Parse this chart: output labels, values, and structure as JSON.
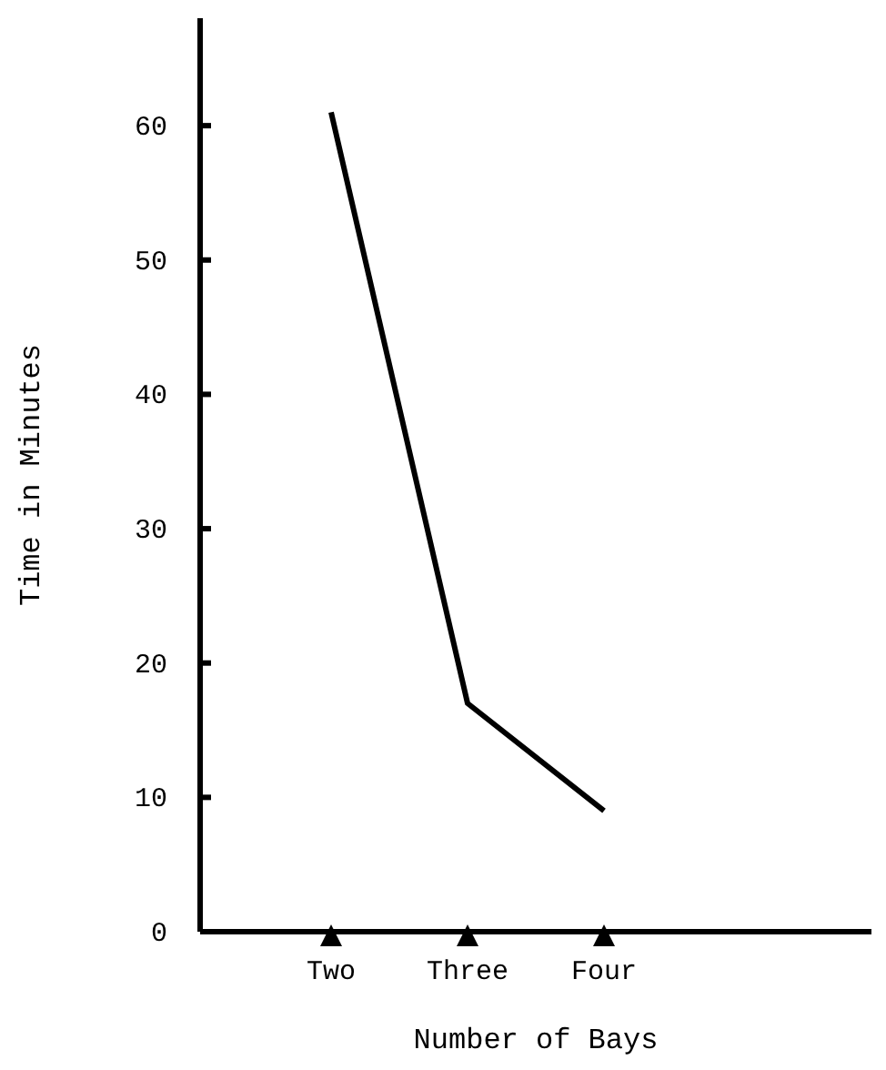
{
  "chart_data": {
    "type": "line",
    "xlabel": "Number of Bays",
    "ylabel": "Time in Minutes",
    "categories": [
      "Two",
      "Three",
      "Four"
    ],
    "series": [
      {
        "color": "#000000",
        "values": [
          61,
          17,
          9
        ]
      }
    ],
    "ylim": [
      0,
      68
    ],
    "yticks": [
      0,
      10,
      20,
      30,
      40,
      50,
      60
    ],
    "marker": "none",
    "line_style": "solid"
  }
}
